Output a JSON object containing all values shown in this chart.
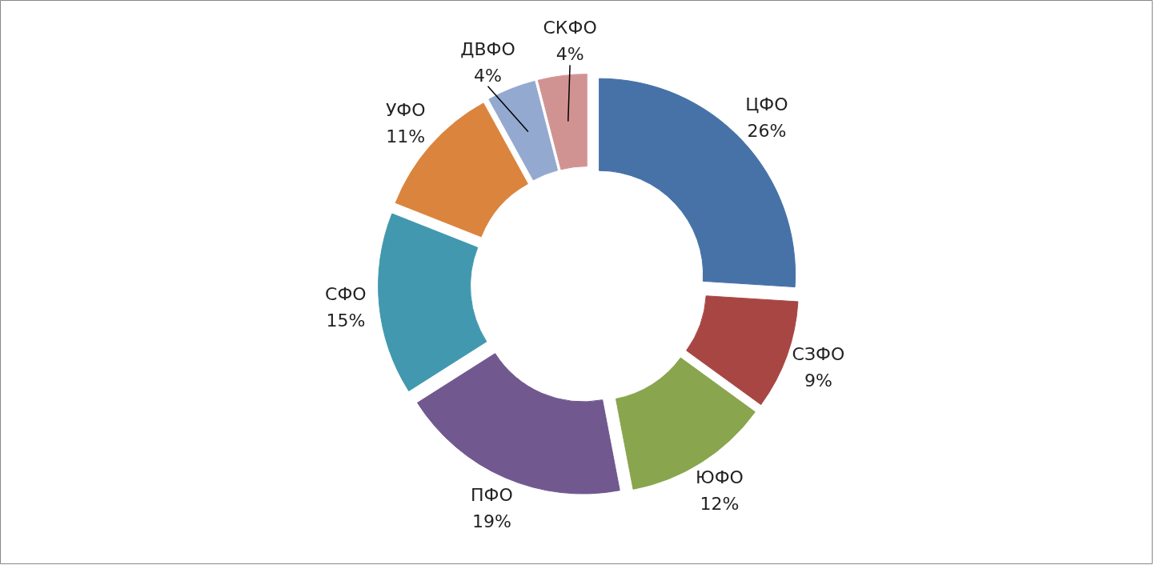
{
  "chart_data": {
    "type": "donut",
    "categories": [
      "ЦФО",
      "СЗФО",
      "ЮФО",
      "ПФО",
      "СФО",
      "УФО",
      "ДВФО",
      "СКФО"
    ],
    "values": [
      26,
      9,
      12,
      19,
      15,
      11,
      4,
      4
    ],
    "value_labels": [
      "26%",
      "9%",
      "12%",
      "19%",
      "15%",
      "11%",
      "4%",
      "4%"
    ],
    "colors": [
      "#4672a8",
      "#a84644",
      "#89a54e",
      "#71588f",
      "#4198af",
      "#db843d",
      "#93a9cf",
      "#d19392"
    ]
  }
}
